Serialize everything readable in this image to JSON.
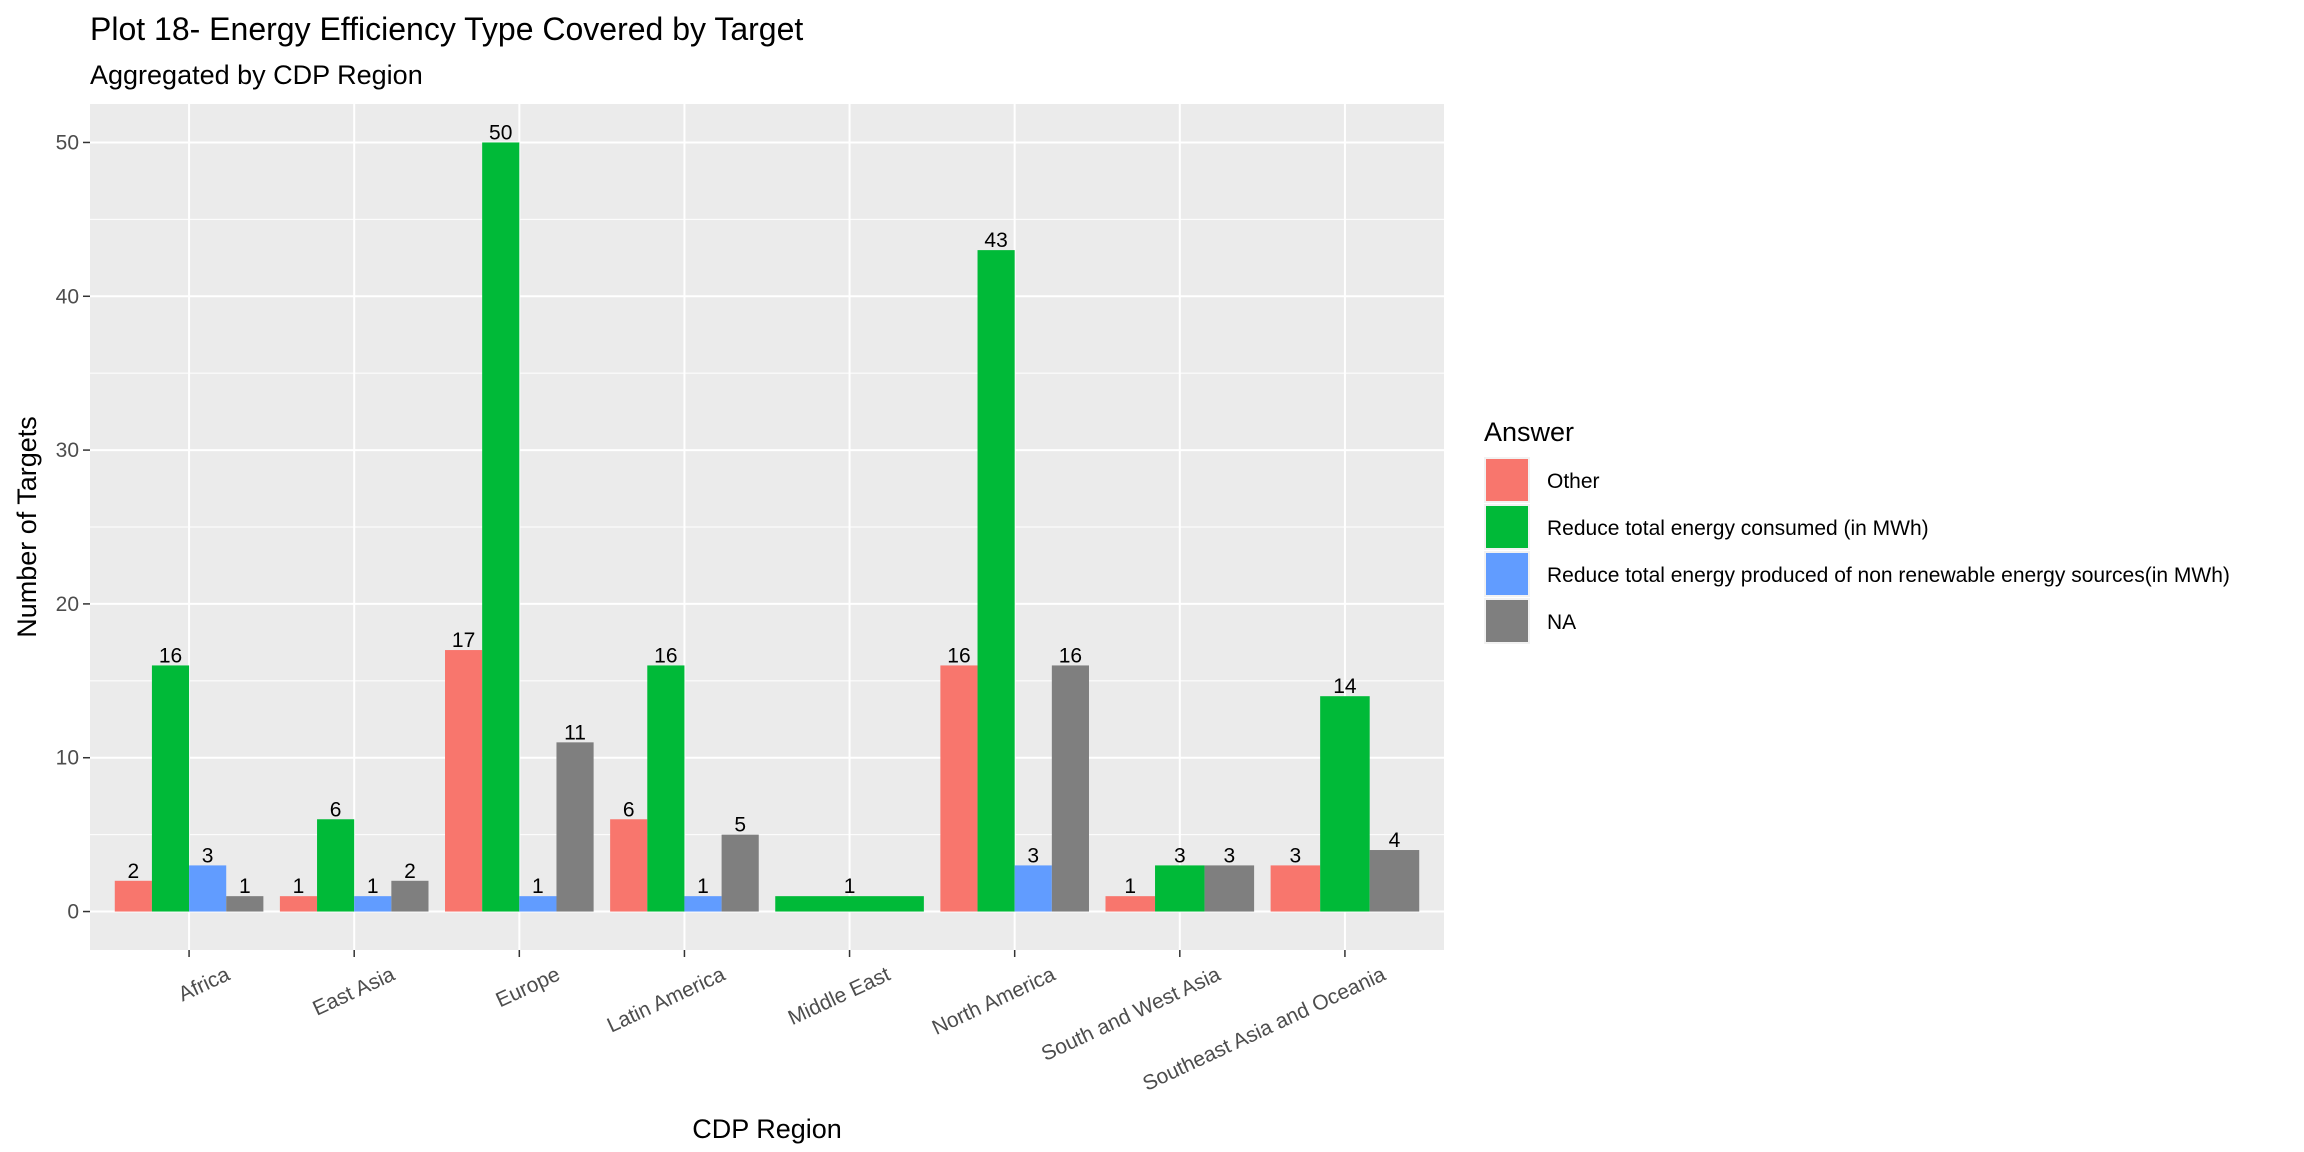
{
  "chart_data": {
    "type": "bar",
    "title": "Plot 18- Energy Efficiency Type Covered by Target",
    "subtitle": "Aggregated by CDP Region",
    "xlabel": "CDP Region",
    "ylabel": "Number of Targets",
    "ylim": [
      -2.5,
      52.5
    ],
    "yticks": [
      0,
      10,
      20,
      30,
      40,
      50
    ],
    "grid": true,
    "legend": {
      "title": "Answer",
      "position": "right"
    },
    "categories": [
      "Africa",
      "East Asia",
      "Europe",
      "Latin America",
      "Middle East",
      "North America",
      "South and West Asia",
      "Southeast Asia and Oceania"
    ],
    "series": [
      {
        "name": "Other",
        "color": "#F8766D",
        "values": [
          2,
          1,
          17,
          6,
          null,
          16,
          1,
          3
        ]
      },
      {
        "name": "Reduce total energy consumed (in MWh)",
        "color": "#00BA38",
        "values": [
          16,
          6,
          50,
          16,
          1,
          43,
          3,
          14
        ]
      },
      {
        "name": "Reduce total energy produced of non renewable energy sources(in MWh)",
        "color": "#619CFF",
        "values": [
          3,
          1,
          1,
          1,
          null,
          3,
          null,
          null
        ]
      },
      {
        "name": "NA",
        "color": "#7F7F7F",
        "values": [
          1,
          2,
          11,
          5,
          null,
          16,
          3,
          4
        ]
      }
    ]
  }
}
